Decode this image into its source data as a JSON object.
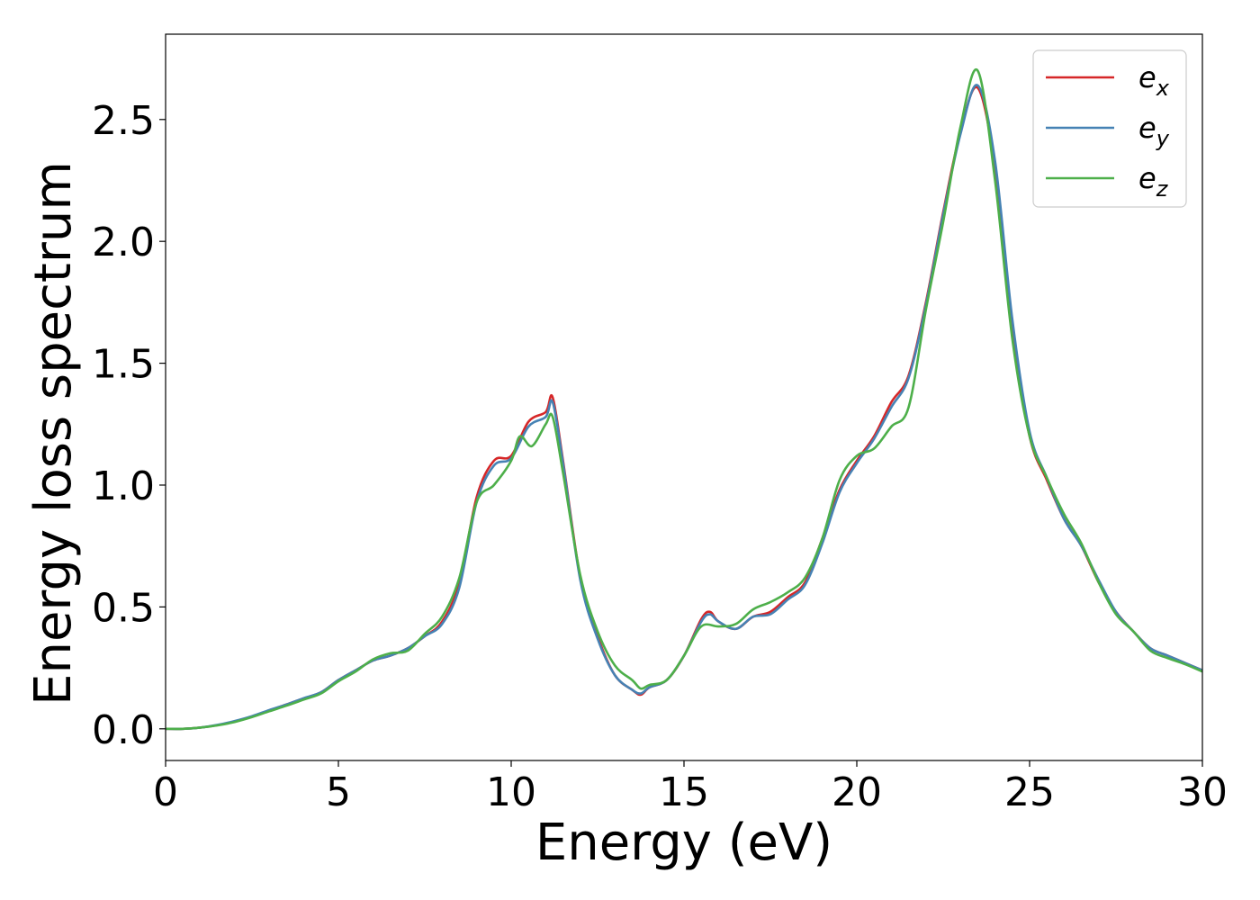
{
  "chart_data": {
    "type": "line",
    "xlabel": "Energy (eV)",
    "ylabel": "Energy loss spectrum",
    "xlim": [
      0,
      30
    ],
    "ylim": [
      -0.13,
      2.85
    ],
    "xticks": [
      0,
      5,
      10,
      15,
      20,
      25,
      30
    ],
    "xtick_labels": [
      "0",
      "5",
      "10",
      "15",
      "20",
      "25",
      "30"
    ],
    "yticks": [
      0.0,
      0.5,
      1.0,
      1.5,
      2.0,
      2.5
    ],
    "ytick_labels": [
      "0.0",
      "0.5",
      "1.0",
      "1.5",
      "2.0",
      "2.5"
    ],
    "grid": false,
    "legend_position": "top-right",
    "series": [
      {
        "name_main": "e",
        "name_sub": "x",
        "color": "#d62728",
        "x": [
          0,
          0.5,
          1,
          1.5,
          2,
          2.5,
          3,
          3.5,
          4,
          4.5,
          5,
          5.5,
          6,
          6.5,
          7,
          7.5,
          8,
          8.5,
          9,
          9.5,
          10,
          10.5,
          11,
          11.2,
          11.5,
          12,
          12.5,
          13,
          13.5,
          13.75,
          14,
          14.5,
          15,
          15.5,
          15.75,
          16,
          16.5,
          17,
          17.5,
          18,
          18.5,
          19,
          19.5,
          20,
          20.5,
          21,
          21.5,
          22,
          22.5,
          23,
          23.5,
          24,
          24.5,
          25,
          25.5,
          26,
          26.5,
          27,
          27.5,
          28,
          28.5,
          29,
          29.5,
          30
        ],
        "values": [
          0.0,
          0.0,
          0.005,
          0.015,
          0.03,
          0.05,
          0.075,
          0.1,
          0.125,
          0.15,
          0.2,
          0.24,
          0.28,
          0.3,
          0.33,
          0.38,
          0.44,
          0.6,
          0.95,
          1.1,
          1.12,
          1.26,
          1.3,
          1.36,
          1.1,
          0.62,
          0.38,
          0.22,
          0.16,
          0.14,
          0.17,
          0.2,
          0.3,
          0.45,
          0.48,
          0.44,
          0.41,
          0.46,
          0.48,
          0.54,
          0.6,
          0.78,
          0.98,
          1.1,
          1.2,
          1.34,
          1.45,
          1.75,
          2.12,
          2.45,
          2.63,
          2.3,
          1.65,
          1.2,
          1.02,
          0.86,
          0.75,
          0.6,
          0.48,
          0.4,
          0.33,
          0.3,
          0.27,
          0.24
        ]
      },
      {
        "name_main": "e",
        "name_sub": "y",
        "color": "#4682b4",
        "x": [
          0,
          0.5,
          1,
          1.5,
          2,
          2.5,
          3,
          3.5,
          4,
          4.5,
          5,
          5.5,
          6,
          6.5,
          7,
          7.5,
          8,
          8.5,
          9,
          9.5,
          10,
          10.5,
          11,
          11.2,
          11.5,
          12,
          12.5,
          13,
          13.5,
          13.75,
          14,
          14.5,
          15,
          15.5,
          15.75,
          16,
          16.5,
          17,
          17.5,
          18,
          18.5,
          19,
          19.5,
          20,
          20.5,
          21,
          21.5,
          22,
          22.5,
          23,
          23.5,
          24,
          24.5,
          25,
          25.5,
          26,
          26.5,
          27,
          27.5,
          28,
          28.5,
          29,
          29.5,
          30
        ],
        "values": [
          0.0,
          0.0,
          0.005,
          0.016,
          0.032,
          0.052,
          0.077,
          0.1,
          0.126,
          0.15,
          0.2,
          0.24,
          0.28,
          0.3,
          0.33,
          0.38,
          0.43,
          0.58,
          0.93,
          1.08,
          1.11,
          1.24,
          1.28,
          1.34,
          1.09,
          0.61,
          0.37,
          0.22,
          0.16,
          0.145,
          0.17,
          0.2,
          0.3,
          0.44,
          0.47,
          0.44,
          0.41,
          0.46,
          0.47,
          0.53,
          0.59,
          0.76,
          0.97,
          1.09,
          1.19,
          1.32,
          1.44,
          1.74,
          2.11,
          2.44,
          2.64,
          2.33,
          1.68,
          1.22,
          1.03,
          0.86,
          0.75,
          0.61,
          0.48,
          0.4,
          0.33,
          0.3,
          0.27,
          0.24
        ]
      },
      {
        "name_main": "e",
        "name_sub": "z",
        "color": "#4daf4a",
        "x": [
          0,
          0.5,
          1,
          1.5,
          2,
          2.5,
          3,
          3.5,
          4,
          4.5,
          5,
          5.5,
          6,
          6.5,
          7,
          7.5,
          8,
          8.5,
          9,
          9.5,
          10,
          10.25,
          10.6,
          11,
          11.2,
          11.5,
          12,
          12.5,
          13,
          13.5,
          13.75,
          14,
          14.5,
          15,
          15.5,
          16,
          16.5,
          17,
          17.5,
          18,
          18.5,
          19,
          19.5,
          20,
          20.5,
          21,
          21.5,
          22,
          22.5,
          23,
          23.5,
          24,
          24.5,
          25,
          25.5,
          26,
          26.5,
          27,
          27.5,
          28,
          28.5,
          29,
          29.5,
          30
        ],
        "values": [
          0.0,
          0.0,
          0.005,
          0.014,
          0.028,
          0.048,
          0.072,
          0.095,
          0.12,
          0.145,
          0.195,
          0.235,
          0.285,
          0.31,
          0.32,
          0.39,
          0.46,
          0.62,
          0.93,
          1.0,
          1.1,
          1.2,
          1.16,
          1.25,
          1.28,
          1.05,
          0.63,
          0.4,
          0.26,
          0.2,
          0.165,
          0.18,
          0.2,
          0.3,
          0.42,
          0.42,
          0.43,
          0.49,
          0.52,
          0.56,
          0.62,
          0.78,
          1.02,
          1.12,
          1.15,
          1.24,
          1.32,
          1.72,
          2.08,
          2.47,
          2.7,
          2.25,
          1.6,
          1.2,
          1.03,
          0.88,
          0.76,
          0.6,
          0.47,
          0.4,
          0.32,
          0.29,
          0.265,
          0.235
        ]
      }
    ]
  }
}
